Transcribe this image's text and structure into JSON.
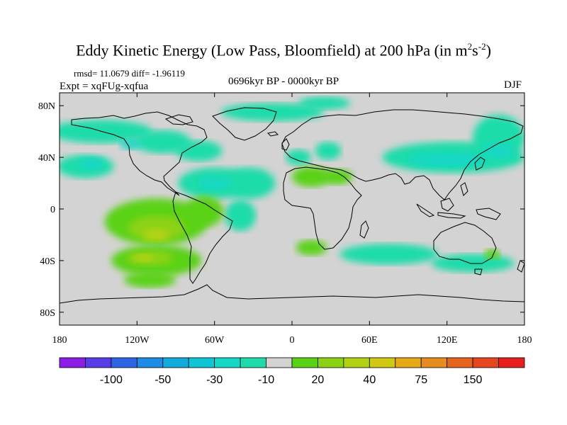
{
  "chart_data": {
    "type": "heatmap",
    "title_main": "Eddy Kinetic Energy (Low Pass, Bloomfield) at 200 hPa (in m",
    "title_sup1": "2",
    "title_mid": "s",
    "title_sup2": "-2",
    "title_end": ")",
    "stats": "rmsd= 11.0679 diff= -1.96119",
    "experiment": "Expt = xqFUg-xqfua",
    "period": "0696kyr BP - 0000kyr BP",
    "season": "DJF",
    "x_range": [
      -180,
      180
    ],
    "y_range": [
      -90,
      90
    ],
    "x_ticks": [
      {
        "value": -180,
        "label": "180"
      },
      {
        "value": -120,
        "label": "120W"
      },
      {
        "value": -60,
        "label": "60W"
      },
      {
        "value": 0,
        "label": "0"
      },
      {
        "value": 60,
        "label": "60E"
      },
      {
        "value": 120,
        "label": "120E"
      },
      {
        "value": 180,
        "label": "180"
      }
    ],
    "y_ticks": [
      {
        "value": 80,
        "label": "80N"
      },
      {
        "value": 40,
        "label": "40N"
      },
      {
        "value": 0,
        "label": "0"
      },
      {
        "value": -40,
        "label": "40S"
      },
      {
        "value": -80,
        "label": "80S"
      }
    ],
    "background_color": "#d3d3d3",
    "colorbar": {
      "colors": [
        "#8c1ee6",
        "#5a3ce6",
        "#2d64e6",
        "#1e8ce6",
        "#14aadc",
        "#10c4d8",
        "#14d8c4",
        "#1edcaa",
        "#d3d3d3",
        "#5ad214",
        "#8cd214",
        "#b4d214",
        "#d2c814",
        "#e6aa14",
        "#e68c1e",
        "#e6641e",
        "#e6461e",
        "#e61e1e"
      ],
      "labels": [
        {
          "boundary": 2,
          "text": "-100"
        },
        {
          "boundary": 4,
          "text": "-50"
        },
        {
          "boundary": 6,
          "text": "-30"
        },
        {
          "boundary": 8,
          "text": "-10"
        },
        {
          "boundary": 10,
          "text": "20"
        },
        {
          "boundary": 12,
          "text": "40"
        },
        {
          "boundary": 14,
          "text": "75"
        },
        {
          "boundary": 16,
          "text": "150"
        }
      ]
    },
    "regions": [
      {
        "level": -20,
        "lon": -160,
        "lat": 33,
        "rlon": 22,
        "rlat": 9
      },
      {
        "level": -20,
        "lon": -148,
        "lat": 60,
        "rlon": 40,
        "rlat": 9
      },
      {
        "level": -20,
        "lon": -100,
        "lat": 52,
        "rlon": 22,
        "rlat": 9
      },
      {
        "level": -20,
        "lon": -72,
        "lat": 45,
        "rlon": 18,
        "rlat": 8
      },
      {
        "level": -20,
        "lon": -60,
        "lat": 20,
        "rlon": 28,
        "rlat": 12
      },
      {
        "level": -20,
        "lon": -33,
        "lat": 20,
        "rlon": 20,
        "rlat": 12
      },
      {
        "level": -20,
        "lon": -40,
        "lat": -5,
        "rlon": 12,
        "rlat": 12
      },
      {
        "level": -20,
        "lon": -15,
        "lat": 75,
        "rlon": 40,
        "rlat": 7
      },
      {
        "level": -20,
        "lon": 25,
        "lat": 82,
        "rlon": 20,
        "rlat": 5
      },
      {
        "level": -20,
        "lon": 5,
        "lat": 40,
        "rlon": 10,
        "rlat": 6
      },
      {
        "level": -20,
        "lon": 28,
        "lat": 45,
        "rlon": 10,
        "rlat": 7
      },
      {
        "level": -20,
        "lon": 125,
        "lat": 40,
        "rlon": 55,
        "rlat": 12
      },
      {
        "level": -20,
        "lon": 160,
        "lat": 55,
        "rlon": 20,
        "rlat": 18
      },
      {
        "level": -20,
        "lon": 75,
        "lat": -35,
        "rlon": 38,
        "rlat": 8
      },
      {
        "level": -20,
        "lon": 140,
        "lat": -42,
        "rlon": 32,
        "rlat": 7
      },
      {
        "level": -30,
        "lon": -155,
        "lat": 35,
        "rlon": 10,
        "rlat": 5
      },
      {
        "level": -30,
        "lon": -125,
        "lat": 50,
        "rlon": 8,
        "rlat": 4
      },
      {
        "level": -30,
        "lon": -60,
        "lat": 20,
        "rlon": 12,
        "rlat": 5
      },
      {
        "level": -30,
        "lon": 120,
        "lat": 38,
        "rlon": 30,
        "rlat": 6
      },
      {
        "level": -30,
        "lon": 160,
        "lat": 45,
        "rlon": 12,
        "rlat": 6
      },
      {
        "level": 20,
        "lon": -105,
        "lat": -10,
        "rlon": 40,
        "rlat": 18
      },
      {
        "level": 20,
        "lon": -105,
        "lat": -40,
        "rlon": 35,
        "rlat": 12
      },
      {
        "level": 20,
        "lon": -110,
        "lat": -55,
        "rlon": 20,
        "rlat": 6
      },
      {
        "level": 20,
        "lon": -68,
        "lat": -2,
        "rlon": 15,
        "rlat": 12
      },
      {
        "level": 20,
        "lon": 15,
        "lat": 25,
        "rlon": 15,
        "rlat": 8
      },
      {
        "level": 20,
        "lon": 35,
        "lat": 25,
        "rlon": 12,
        "rlat": 6
      },
      {
        "level": 20,
        "lon": 15,
        "lat": -30,
        "rlon": 12,
        "rlat": 6
      },
      {
        "level": 20,
        "lon": 155,
        "lat": -35,
        "rlon": 6,
        "rlat": 4
      },
      {
        "level": 40,
        "lon": -105,
        "lat": -15,
        "rlon": 22,
        "rlat": 10
      },
      {
        "level": 40,
        "lon": -110,
        "lat": -38,
        "rlon": 18,
        "rlat": 6
      },
      {
        "level": 50,
        "lon": -105,
        "lat": -20,
        "rlon": 10,
        "rlat": 5
      },
      {
        "level": 50,
        "lon": -115,
        "lat": -38,
        "rlon": 8,
        "rlat": 3
      }
    ]
  }
}
